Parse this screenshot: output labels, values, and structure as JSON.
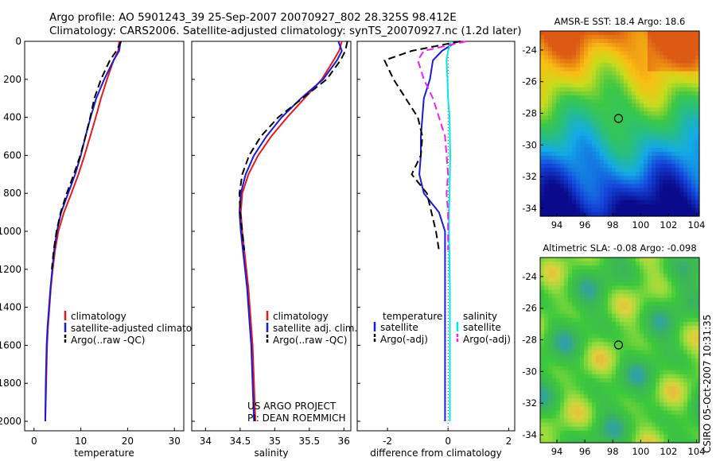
{
  "header": {
    "line1": "Argo profile: AO 5901243_39 25-Sep-2007 20070927_802 28.325S 98.412E",
    "line2": "Climatology: CARS2006. Satellite-adjusted climatology: synTS_20070927.nc (1.2d later)"
  },
  "stamp": "CSIRO 05-Oct-2007 10:31:35",
  "colors": {
    "red": "#e41a1c",
    "blue": "#1a1adb",
    "black": "#000000",
    "cyan": "#00e8e8",
    "magenta": "#ee22ee"
  },
  "chart_data": [
    {
      "id": "temperature",
      "type": "line",
      "xlabel": "temperature",
      "ylabel": "",
      "xlim": [
        -2,
        32
      ],
      "ylim": [
        2050,
        0
      ],
      "xticks": [
        "0",
        "10",
        "20",
        "30"
      ],
      "yticks": [
        "0",
        "200",
        "400",
        "600",
        "800",
        "1000",
        "1200",
        "1400",
        "1600",
        "1800",
        "2000"
      ],
      "series": [
        {
          "name": "climatology",
          "color": "red",
          "dash": false,
          "x": [
            18.2,
            18.0,
            17.0,
            15.6,
            14.3,
            13.2,
            12.0,
            10.8,
            9.5,
            8.0,
            6.4,
            5.2,
            4.5,
            4.0,
            3.6,
            3.3,
            3.0,
            2.8,
            2.6,
            2.4
          ],
          "y": [
            0,
            50,
            100,
            200,
            300,
            400,
            500,
            600,
            700,
            800,
            900,
            1000,
            1100,
            1200,
            1300,
            1400,
            1500,
            1600,
            1800,
            2000
          ]
        },
        {
          "name": "satellite-adjusted climatology",
          "color": "blue",
          "dash": false,
          "x": [
            18.5,
            18.2,
            17.0,
            15.0,
            13.3,
            12.1,
            11.0,
            10.0,
            8.8,
            7.3,
            5.8,
            4.9,
            4.3,
            3.9,
            3.5,
            3.2,
            2.9,
            2.7,
            2.5,
            2.4
          ],
          "y": [
            0,
            50,
            100,
            200,
            300,
            400,
            500,
            600,
            700,
            800,
            900,
            1000,
            1100,
            1200,
            1300,
            1400,
            1500,
            1600,
            1800,
            2000
          ]
        },
        {
          "name": "Argo(..raw -QC)",
          "color": "black",
          "dash": true,
          "x": [
            18.6,
            17.6,
            16.2,
            14.3,
            12.9,
            12.0,
            11.0,
            9.9,
            8.5,
            7.0,
            5.7,
            4.8,
            4.2,
            3.8
          ],
          "y": [
            0,
            50,
            100,
            200,
            300,
            400,
            500,
            600,
            700,
            800,
            900,
            1000,
            1100,
            1200
          ]
        }
      ],
      "legend": {
        "position": "bottom-right"
      },
      "annotations": []
    },
    {
      "id": "salinity",
      "type": "line",
      "xlabel": "salinity",
      "ylabel": "",
      "xlim": [
        33.8,
        36.1
      ],
      "ylim": [
        2050,
        0
      ],
      "xticks": [
        "34",
        "34.5",
        "35",
        "35.5",
        "36"
      ],
      "series": [
        {
          "name": "climatology",
          "color": "red",
          "dash": false,
          "x": [
            35.97,
            35.93,
            35.85,
            35.68,
            35.43,
            35.18,
            34.95,
            34.76,
            34.62,
            34.53,
            34.51,
            34.53,
            34.56,
            34.59,
            34.62,
            34.64,
            34.66,
            34.68,
            34.7,
            34.72
          ],
          "y": [
            0,
            50,
            100,
            200,
            300,
            400,
            500,
            600,
            700,
            800,
            900,
            1000,
            1100,
            1200,
            1300,
            1400,
            1500,
            1600,
            1800,
            2000
          ]
        },
        {
          "name": "satellite adj. clim.",
          "color": "blue",
          "dash": false,
          "x": [
            35.92,
            35.97,
            35.9,
            35.7,
            35.38,
            35.1,
            34.88,
            34.7,
            34.58,
            34.51,
            34.49,
            34.51,
            34.54,
            34.57,
            34.6,
            34.62,
            34.64,
            34.66,
            34.68,
            34.7
          ],
          "y": [
            0,
            50,
            100,
            200,
            300,
            400,
            500,
            600,
            700,
            800,
            900,
            1000,
            1100,
            1200,
            1300,
            1400,
            1500,
            1600,
            1800,
            2000
          ]
        },
        {
          "name": "Argo(..raw -QC)",
          "color": "black",
          "dash": true,
          "x": [
            36.05,
            36.02,
            35.95,
            35.75,
            35.4,
            35.05,
            34.8,
            34.63,
            34.53,
            34.49,
            34.5,
            34.53,
            34.56
          ],
          "y": [
            0,
            50,
            100,
            200,
            300,
            400,
            500,
            600,
            700,
            800,
            900,
            1000,
            1100
          ]
        }
      ],
      "legend": {
        "position": "bottom-right"
      },
      "annotations": [
        "US ARGO PROJECT",
        "PI: DEAN ROEMMICH"
      ]
    },
    {
      "id": "difference",
      "type": "line",
      "xlabel": "difference from climatology",
      "ylabel": "",
      "xlim": [
        -3.0,
        2.2
      ],
      "ylim": [
        2050,
        0
      ],
      "xticks": [
        "-2",
        "0",
        "2"
      ],
      "legend_titles": [
        "temperature",
        "salinity"
      ],
      "series": [
        {
          "name": "satellite",
          "group": "temperature",
          "color": "blue",
          "dash": false,
          "x": [
            0.3,
            -0.2,
            -0.5,
            -0.6,
            -0.8,
            -0.85,
            -0.9,
            -0.9,
            -0.95,
            -0.8,
            -0.3,
            -0.1,
            -0.1,
            -0.1,
            -0.1,
            -0.1,
            -0.1,
            -0.1,
            -0.1,
            -0.1
          ],
          "y": [
            0,
            50,
            100,
            200,
            300,
            400,
            500,
            600,
            700,
            800,
            900,
            1000,
            1100,
            1200,
            1300,
            1400,
            1500,
            1600,
            1800,
            2000
          ]
        },
        {
          "name": "Argo(-adj)",
          "group": "temperature",
          "color": "black",
          "dash": true,
          "x": [
            0.4,
            -1.2,
            -2.1,
            -1.8,
            -1.4,
            -1.0,
            -0.85,
            -0.9,
            -1.2,
            -0.7,
            -0.55,
            -0.4,
            -0.3
          ],
          "y": [
            0,
            50,
            100,
            200,
            300,
            400,
            500,
            600,
            700,
            800,
            900,
            1000,
            1100
          ]
        },
        {
          "name": "satellite",
          "group": "salinity",
          "color": "cyan",
          "dash": false,
          "x": [
            0.1,
            0.0,
            -0.05,
            -0.02,
            0.0,
            0.05,
            0.06,
            0.07,
            0.06,
            0.05,
            0.03,
            0.03,
            0.04,
            0.05,
            0.06,
            0.06,
            0.06,
            0.06,
            0.06,
            0.06
          ],
          "y": [
            0,
            50,
            100,
            200,
            300,
            400,
            500,
            600,
            700,
            800,
            900,
            1000,
            1100,
            1200,
            1300,
            1400,
            1500,
            1600,
            1800,
            2000
          ]
        },
        {
          "name": "Argo(-adj)",
          "group": "salinity",
          "color": "magenta",
          "dash": true,
          "x": [
            0.6,
            -0.8,
            -1.0,
            -0.8,
            -0.5,
            -0.3,
            -0.1,
            -0.05,
            0.0,
            -0.05,
            0.0,
            0.0,
            0.0
          ],
          "y": [
            0,
            50,
            100,
            200,
            300,
            400,
            500,
            600,
            700,
            800,
            900,
            1000,
            1100
          ]
        }
      ],
      "legend": {
        "position": "bottom"
      },
      "annotations": []
    },
    {
      "id": "sst-map",
      "type": "heatmap",
      "title": "AMSR-E SST: 18.4 Argo: 18.6",
      "xlim": [
        92.8,
        104.2
      ],
      "ylim": [
        -34.5,
        -22.8
      ],
      "xticks": [
        "94",
        "96",
        "98",
        "100",
        "102",
        "104"
      ],
      "yticks": [
        "-24",
        "-26",
        "-28",
        "-30",
        "-32",
        "-34"
      ],
      "marker": {
        "lon": 98.412,
        "lat": -28.325
      }
    },
    {
      "id": "sla-map",
      "type": "heatmap",
      "title": "Altimetric SLA: -0.08 Argo: -0.098",
      "xlim": [
        92.8,
        104.2
      ],
      "ylim": [
        -34.5,
        -22.8
      ],
      "xticks": [
        "94",
        "96",
        "98",
        "100",
        "102",
        "104"
      ],
      "yticks": [
        "-24",
        "-26",
        "-28",
        "-30",
        "-32",
        "-34"
      ],
      "marker": {
        "lon": 98.412,
        "lat": -28.325
      }
    }
  ]
}
